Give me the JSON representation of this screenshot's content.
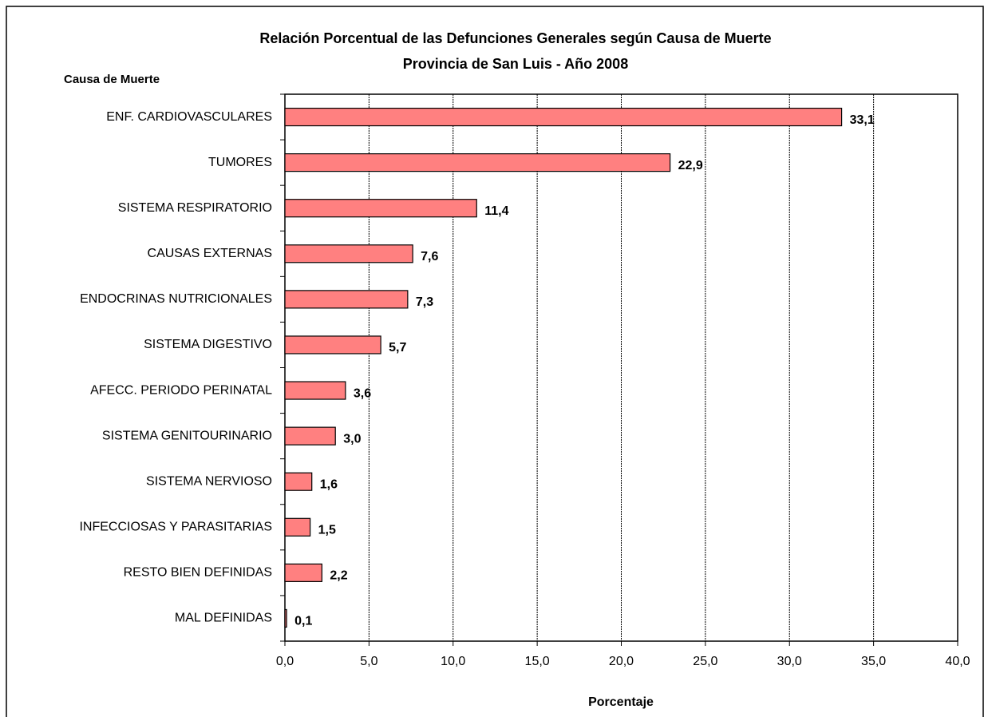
{
  "chart_data": {
    "type": "bar",
    "orientation": "horizontal",
    "title": "Relación Porcentual de las Defunciones Generales según Causa de Muerte",
    "subtitle": "Provincia de San Luis - Año 2008",
    "y_label": "Causa de Muerte",
    "x_label": "Porcentaje",
    "categories": [
      "ENF. CARDIOVASCULARES",
      "TUMORES",
      "SISTEMA RESPIRATORIO",
      "CAUSAS EXTERNAS",
      "ENDOCRINAS NUTRICIONALES",
      "SISTEMA DIGESTIVO",
      "AFECC. PERIODO PERINATAL",
      "SISTEMA GENITOURINARIO",
      "SISTEMA NERVIOSO",
      "INFECCIOSAS Y PARASITARIAS",
      "RESTO BIEN DEFINIDAS",
      "MAL DEFINIDAS"
    ],
    "values": [
      33.1,
      22.9,
      11.4,
      7.6,
      7.3,
      5.7,
      3.6,
      3.0,
      1.6,
      1.5,
      2.2,
      0.1
    ],
    "value_labels": [
      "33,1",
      "22,9",
      "11,4",
      "7,6",
      "7,3",
      "5,7",
      "3,6",
      "3,0",
      "1,6",
      "1,5",
      "2,2",
      "0,1"
    ],
    "color": "#ff8080",
    "xlim": [
      0,
      40
    ],
    "xticks": [
      {
        "value": 0,
        "label": "0,0"
      },
      {
        "value": 5,
        "label": "5,0"
      },
      {
        "value": 10,
        "label": "10,0"
      },
      {
        "value": 15,
        "label": "15,0"
      },
      {
        "value": 20,
        "label": "20,0"
      },
      {
        "value": 25,
        "label": "25,0"
      },
      {
        "value": 30,
        "label": "30,0"
      },
      {
        "value": 35,
        "label": "35,0"
      },
      {
        "value": 40,
        "label": "40,0"
      }
    ],
    "grid": true
  }
}
